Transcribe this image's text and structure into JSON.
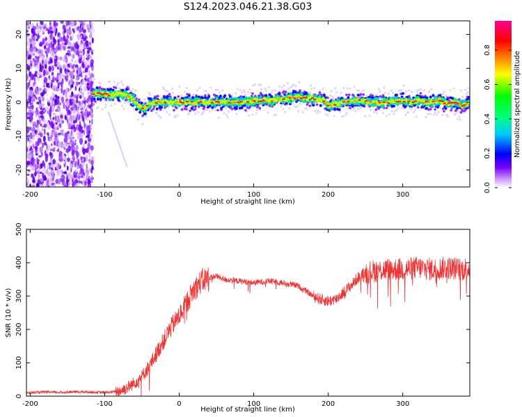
{
  "title": "S124.2023.046.21.38.G03",
  "chart_data": [
    {
      "type": "heatmap",
      "title": "S124.2023.046.21.38.G03",
      "xlabel": "Height of straight line (km)",
      "ylabel": "Frequency (Hz)",
      "xlim": [
        -205,
        390
      ],
      "ylim": [
        -25,
        24
      ],
      "xticks": [
        -200,
        -100,
        0,
        100,
        200,
        300
      ],
      "yticks": [
        -20,
        -10,
        0,
        10,
        20
      ],
      "colorbar": {
        "label": "Normalized spectral amplitude",
        "range": [
          0,
          0.97
        ],
        "ticks": [
          0.0,
          0.2,
          0.4,
          0.6,
          0.8
        ],
        "colormap": [
          "#ffffff",
          "#7a00ff",
          "#0000ff",
          "#00ffff",
          "#00ff00",
          "#ffff00",
          "#ff7f00",
          "#ff0000",
          "#ff0080"
        ]
      },
      "noise_region_x": [
        -205,
        -115
      ],
      "ridge": {
        "x": [
          -115,
          -100,
          -90,
          -80,
          -70,
          -60,
          -55,
          -50,
          -45,
          -40,
          -30,
          -20,
          0,
          20,
          50,
          80,
          100,
          120,
          140,
          160,
          180,
          195,
          200,
          210,
          220,
          240,
          260,
          280,
          300,
          310,
          320,
          330,
          340,
          350,
          360,
          370,
          380,
          390
        ],
        "y": [
          2.5,
          2.5,
          2.0,
          2.5,
          2.0,
          0.5,
          -1.0,
          -2.0,
          -1.5,
          -0.5,
          0.0,
          0.0,
          0.0,
          0.0,
          0.0,
          0.0,
          0.5,
          0.5,
          1.0,
          1.5,
          1.0,
          0.5,
          -1.0,
          -0.5,
          0.0,
          0.5,
          0.0,
          0.0,
          0.5,
          0.0,
          0.5,
          0.0,
          0.0,
          0.5,
          -0.5,
          0.0,
          -1.0,
          0.0
        ]
      }
    },
    {
      "type": "line",
      "xlabel": "Height of straight line (km)",
      "ylabel": "SNR (10 * v/v)",
      "xlim": [
        -205,
        390
      ],
      "ylim": [
        0,
        500
      ],
      "xticks": [
        -200,
        -100,
        0,
        100,
        200,
        300
      ],
      "yticks": [
        0,
        100,
        200,
        300,
        400,
        500
      ],
      "color": "#ef3434",
      "series": [
        {
          "x": [
            -205,
            -180,
            -160,
            -140,
            -120,
            -100,
            -90,
            -80,
            -70,
            -60,
            -50,
            -40,
            -30,
            -20,
            -10,
            0,
            10,
            20,
            30,
            40,
            50,
            60,
            80,
            100,
            120,
            140,
            160,
            180,
            190,
            200,
            210,
            220,
            230,
            240,
            250,
            260,
            280,
            300,
            320,
            340,
            360,
            380,
            390
          ],
          "values": [
            10,
            12,
            11,
            13,
            12,
            11,
            12,
            15,
            25,
            40,
            60,
            90,
            130,
            170,
            210,
            240,
            280,
            320,
            345,
            355,
            360,
            350,
            345,
            340,
            345,
            340,
            330,
            300,
            290,
            285,
            290,
            310,
            330,
            355,
            370,
            375,
            380,
            380,
            385,
            380,
            385,
            380,
            385
          ]
        }
      ]
    }
  ]
}
